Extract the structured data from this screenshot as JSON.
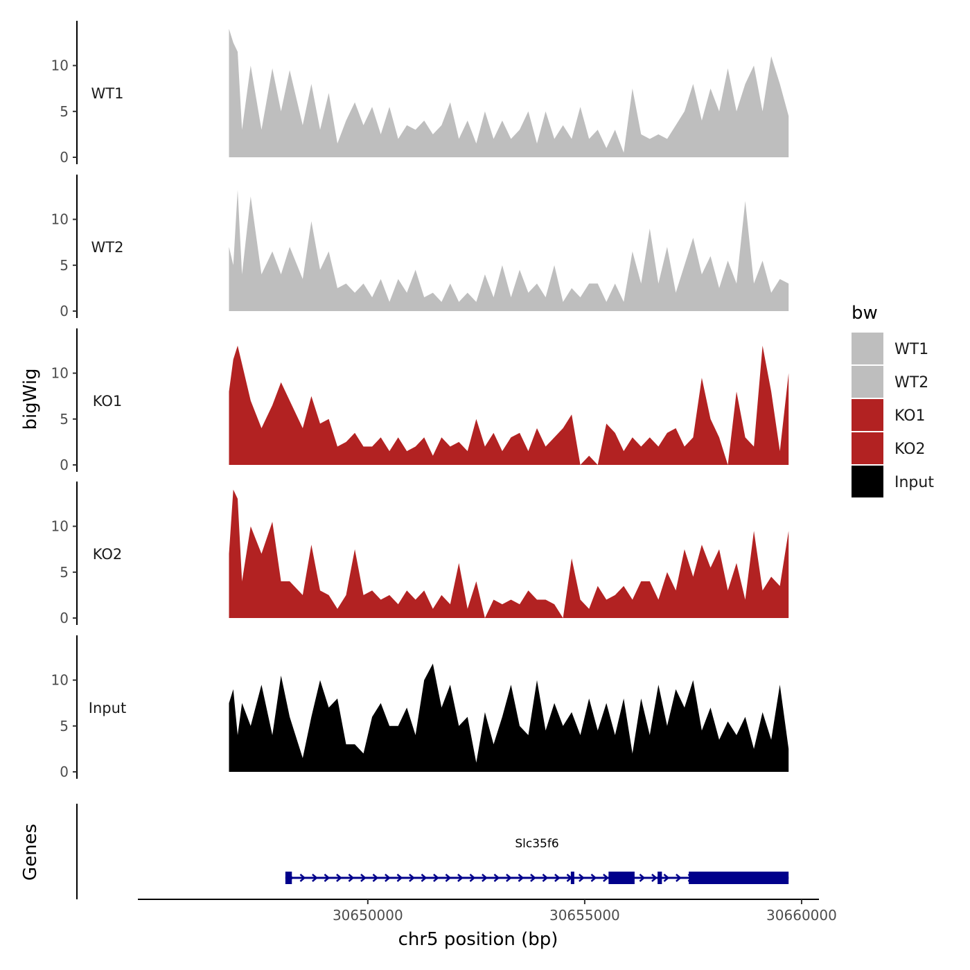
{
  "chart_data": {
    "type": "area",
    "y_axis_title": "bigWig",
    "genes_axis_title": "Genes",
    "x_axis_title": "chr5 position (bp)",
    "xlim": [
      30644700,
      30660400
    ],
    "ylim": [
      0,
      14.5
    ],
    "y_ticks": [
      0,
      5,
      10
    ],
    "x_ticks": [
      30650000,
      30655000,
      30660000
    ],
    "x_tick_labels": [
      "30650000",
      "30655000",
      "30660000"
    ],
    "legend": {
      "title": "bw",
      "items": [
        {
          "label": "WT1",
          "color": "#bebebe"
        },
        {
          "label": "WT2",
          "color": "#bebebe"
        },
        {
          "label": "KO1",
          "color": "#b22222"
        },
        {
          "label": "KO2",
          "color": "#b22222"
        },
        {
          "label": "Input",
          "color": "#000000"
        }
      ]
    },
    "series": [
      {
        "name": "WT1",
        "color": "#bebebe",
        "x": [
          30646800,
          30646900,
          30647000,
          30647100,
          30647300,
          30647550,
          30647800,
          30648000,
          30648200,
          30648500,
          30648700,
          30648900,
          30649100,
          30649300,
          30649500,
          30649700,
          30649900,
          30650100,
          30650300,
          30650500,
          30650700,
          30650900,
          30651100,
          30651300,
          30651500,
          30651700,
          30651900,
          30652100,
          30652300,
          30652500,
          30652700,
          30652900,
          30653100,
          30653300,
          30653500,
          30653700,
          30653900,
          30654100,
          30654300,
          30654500,
          30654700,
          30654900,
          30655100,
          30655300,
          30655500,
          30655700,
          30655900,
          30656100,
          30656300,
          30656500,
          30656700,
          30656900,
          30657100,
          30657300,
          30657500,
          30657700,
          30657900,
          30658100,
          30658300,
          30658500,
          30658700,
          30658900,
          30659100,
          30659300,
          30659500,
          30659700
        ],
        "values": [
          14,
          12.5,
          11.5,
          3,
          10,
          3,
          9.7,
          5,
          9.5,
          3.5,
          8,
          3,
          7,
          1.5,
          4,
          6,
          3.5,
          5.5,
          2.5,
          5.5,
          2,
          3.5,
          3,
          4,
          2.5,
          3.5,
          6,
          2,
          4,
          1.5,
          5,
          2,
          4,
          2,
          3,
          5,
          1.5,
          5,
          2,
          3.5,
          2,
          5.5,
          2,
          3,
          1,
          3,
          0.5,
          7.5,
          2.5,
          2,
          2.5,
          2,
          3.5,
          5,
          8,
          4,
          7.5,
          5,
          9.7,
          5,
          8,
          10,
          5,
          11,
          8,
          4.5
        ]
      },
      {
        "name": "WT2",
        "color": "#bebebe",
        "x": [
          30646800,
          30646900,
          30647000,
          30647100,
          30647300,
          30647550,
          30647800,
          30648000,
          30648200,
          30648500,
          30648700,
          30648900,
          30649100,
          30649300,
          30649500,
          30649700,
          30649900,
          30650100,
          30650300,
          30650500,
          30650700,
          30650900,
          30651100,
          30651300,
          30651500,
          30651700,
          30651900,
          30652100,
          30652300,
          30652500,
          30652700,
          30652900,
          30653100,
          30653300,
          30653500,
          30653700,
          30653900,
          30654100,
          30654300,
          30654500,
          30654700,
          30654900,
          30655100,
          30655300,
          30655500,
          30655700,
          30655900,
          30656100,
          30656300,
          30656500,
          30656700,
          30656900,
          30657100,
          30657300,
          30657500,
          30657700,
          30657900,
          30658100,
          30658300,
          30658500,
          30658700,
          30658900,
          30659100,
          30659300,
          30659500,
          30659700
        ],
        "values": [
          7,
          5,
          13.2,
          4,
          12.5,
          4,
          6.5,
          4,
          7,
          3.5,
          9.8,
          4.5,
          6.5,
          2.5,
          3,
          2,
          3,
          1.5,
          3.5,
          1,
          3.5,
          2,
          4.5,
          1.5,
          2,
          1,
          3,
          1,
          2,
          1,
          4,
          1.5,
          5,
          1.5,
          4.5,
          2,
          3,
          1.5,
          5,
          1,
          2.5,
          1.5,
          3,
          3,
          1,
          3,
          1,
          6.5,
          3,
          9,
          3,
          7,
          2,
          5,
          8,
          4,
          6,
          2.5,
          5.5,
          3,
          12,
          3,
          5.5,
          2,
          3.5,
          3
        ]
      },
      {
        "name": "KO1",
        "color": "#b22222",
        "x": [
          30646800,
          30646900,
          30647000,
          30647100,
          30647300,
          30647550,
          30647800,
          30648000,
          30648200,
          30648500,
          30648700,
          30648900,
          30649100,
          30649300,
          30649500,
          30649700,
          30649900,
          30650100,
          30650300,
          30650500,
          30650700,
          30650900,
          30651100,
          30651300,
          30651500,
          30651700,
          30651900,
          30652100,
          30652300,
          30652500,
          30652700,
          30652900,
          30653100,
          30653300,
          30653500,
          30653700,
          30653900,
          30654100,
          30654300,
          30654500,
          30654700,
          30654900,
          30655100,
          30655300,
          30655500,
          30655700,
          30655900,
          30656100,
          30656300,
          30656500,
          30656700,
          30656900,
          30657100,
          30657300,
          30657500,
          30657700,
          30657900,
          30658100,
          30658300,
          30658500,
          30658700,
          30658900,
          30659100,
          30659300,
          30659500,
          30659700
        ],
        "values": [
          8,
          11.5,
          13,
          11,
          7,
          4,
          6.5,
          9,
          7,
          4,
          7.5,
          4.5,
          5,
          2,
          2.5,
          3.5,
          2,
          2,
          3,
          1.5,
          3,
          1.5,
          2,
          3,
          1,
          3,
          2,
          2.5,
          1.5,
          5,
          2,
          3.5,
          1.5,
          3,
          3.5,
          1.5,
          4,
          2,
          3,
          4,
          5.5,
          0,
          1,
          0,
          4.5,
          3.5,
          1.5,
          3,
          2,
          3,
          2,
          3.5,
          4,
          2,
          3,
          9.5,
          5,
          3,
          0,
          8,
          3,
          2,
          13,
          8,
          1.5,
          10
        ]
      },
      {
        "name": "KO2",
        "color": "#b22222",
        "x": [
          30646800,
          30646900,
          30647000,
          30647100,
          30647300,
          30647550,
          30647800,
          30648000,
          30648200,
          30648500,
          30648700,
          30648900,
          30649100,
          30649300,
          30649500,
          30649700,
          30649900,
          30650100,
          30650300,
          30650500,
          30650700,
          30650900,
          30651100,
          30651300,
          30651500,
          30651700,
          30651900,
          30652100,
          30652300,
          30652500,
          30652700,
          30652900,
          30653100,
          30653300,
          30653500,
          30653700,
          30653900,
          30654100,
          30654300,
          30654500,
          30654700,
          30654900,
          30655100,
          30655300,
          30655500,
          30655700,
          30655900,
          30656100,
          30656300,
          30656500,
          30656700,
          30656900,
          30657100,
          30657300,
          30657500,
          30657700,
          30657900,
          30658100,
          30658300,
          30658500,
          30658700,
          30658900,
          30659100,
          30659300,
          30659500,
          30659700
        ],
        "values": [
          7,
          14,
          13,
          4,
          10,
          7,
          10.5,
          4,
          4,
          2.5,
          8,
          3,
          2.5,
          1,
          2.5,
          7.5,
          2.5,
          3,
          2,
          2.5,
          1.5,
          3,
          2,
          3,
          1,
          2.5,
          1.5,
          6,
          1,
          4,
          0,
          2,
          1.5,
          2,
          1.5,
          3,
          2,
          2,
          1.5,
          0,
          6.5,
          2,
          1,
          3.5,
          2,
          2.5,
          3.5,
          2,
          4,
          4,
          2,
          5,
          3,
          7.5,
          4.5,
          8,
          5.5,
          7.5,
          3,
          6,
          2,
          9.5,
          3,
          4.5,
          3.5,
          9.5
        ]
      },
      {
        "name": "Input",
        "color": "#000000",
        "x": [
          30646800,
          30646900,
          30647000,
          30647100,
          30647300,
          30647550,
          30647800,
          30648000,
          30648200,
          30648500,
          30648700,
          30648900,
          30649100,
          30649300,
          30649500,
          30649700,
          30649900,
          30650100,
          30650300,
          30650500,
          30650700,
          30650900,
          30651100,
          30651300,
          30651500,
          30651700,
          30651900,
          30652100,
          30652300,
          30652500,
          30652700,
          30652900,
          30653100,
          30653300,
          30653500,
          30653700,
          30653900,
          30654100,
          30654300,
          30654500,
          30654700,
          30654900,
          30655100,
          30655300,
          30655500,
          30655700,
          30655900,
          30656100,
          30656300,
          30656500,
          30656700,
          30656900,
          30657100,
          30657300,
          30657500,
          30657700,
          30657900,
          30658100,
          30658300,
          30658500,
          30658700,
          30658900,
          30659100,
          30659300,
          30659500,
          30659700
        ],
        "values": [
          7.5,
          9,
          4,
          7.5,
          5,
          9.5,
          4,
          10.5,
          6,
          1.5,
          6,
          10,
          7,
          8,
          3,
          3,
          2,
          6,
          7.5,
          5,
          5,
          7,
          4,
          10,
          11.8,
          7,
          9.5,
          5,
          6,
          1,
          6.5,
          3,
          6,
          9.5,
          5,
          4,
          10,
          4.5,
          7.5,
          5,
          6.5,
          4,
          8,
          4.5,
          7.5,
          4,
          8,
          2,
          8,
          4,
          9.5,
          5,
          9,
          7,
          10,
          4.5,
          7,
          3.5,
          5.5,
          4,
          6,
          2.5,
          6.5,
          3.5,
          9.5,
          2.5
        ]
      }
    ],
    "gene": {
      "name": "Slc35f6",
      "color": "#00008b",
      "start": 30648100,
      "end": 30659700,
      "strand": "+",
      "exons": [
        [
          30648100,
          30648250
        ],
        [
          30654680,
          30654760
        ],
        [
          30655550,
          30656150
        ],
        [
          30656680,
          30656780
        ],
        [
          30657400,
          30659700
        ]
      ]
    }
  }
}
